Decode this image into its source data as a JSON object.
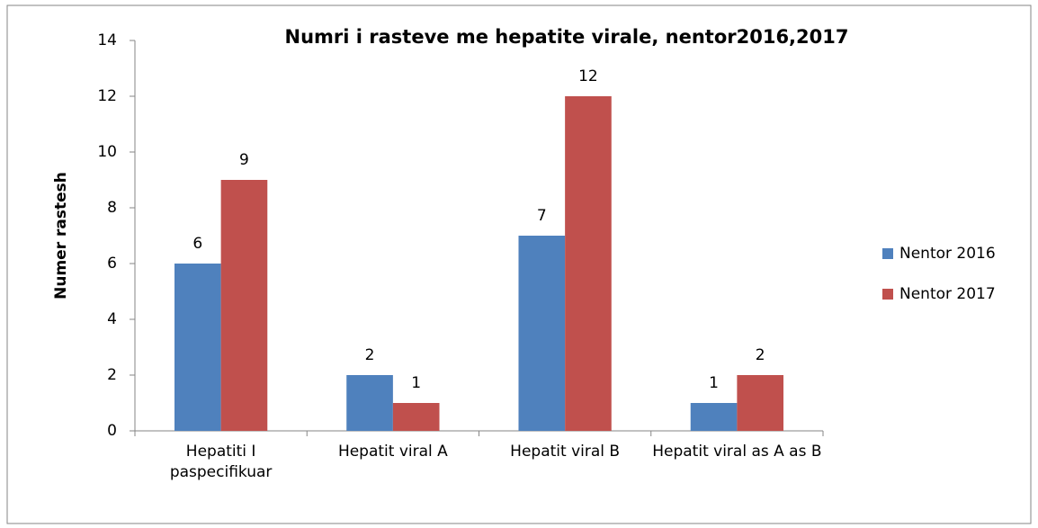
{
  "chart_data": {
    "type": "bar",
    "title": "Numri i rasteve me hepatite virale, nentor2016,2017",
    "y_label": "Numer rastesh",
    "categories": [
      "Hepatiti I paspecifikuar",
      "Hepatit viral A",
      "Hepatit viral B",
      "Hepatit viral as A as B"
    ],
    "series": [
      {
        "name": "Nentor 2016",
        "color": "#4f81bd",
        "values": [
          6,
          2,
          7,
          1
        ]
      },
      {
        "name": "Nentor 2017",
        "color": "#c0504d",
        "values": [
          9,
          1,
          12,
          2
        ]
      }
    ],
    "ylim": [
      0,
      14
    ],
    "yticks": [
      0,
      2,
      4,
      6,
      8,
      10,
      12,
      14
    ],
    "grid": false,
    "legend": "right"
  }
}
